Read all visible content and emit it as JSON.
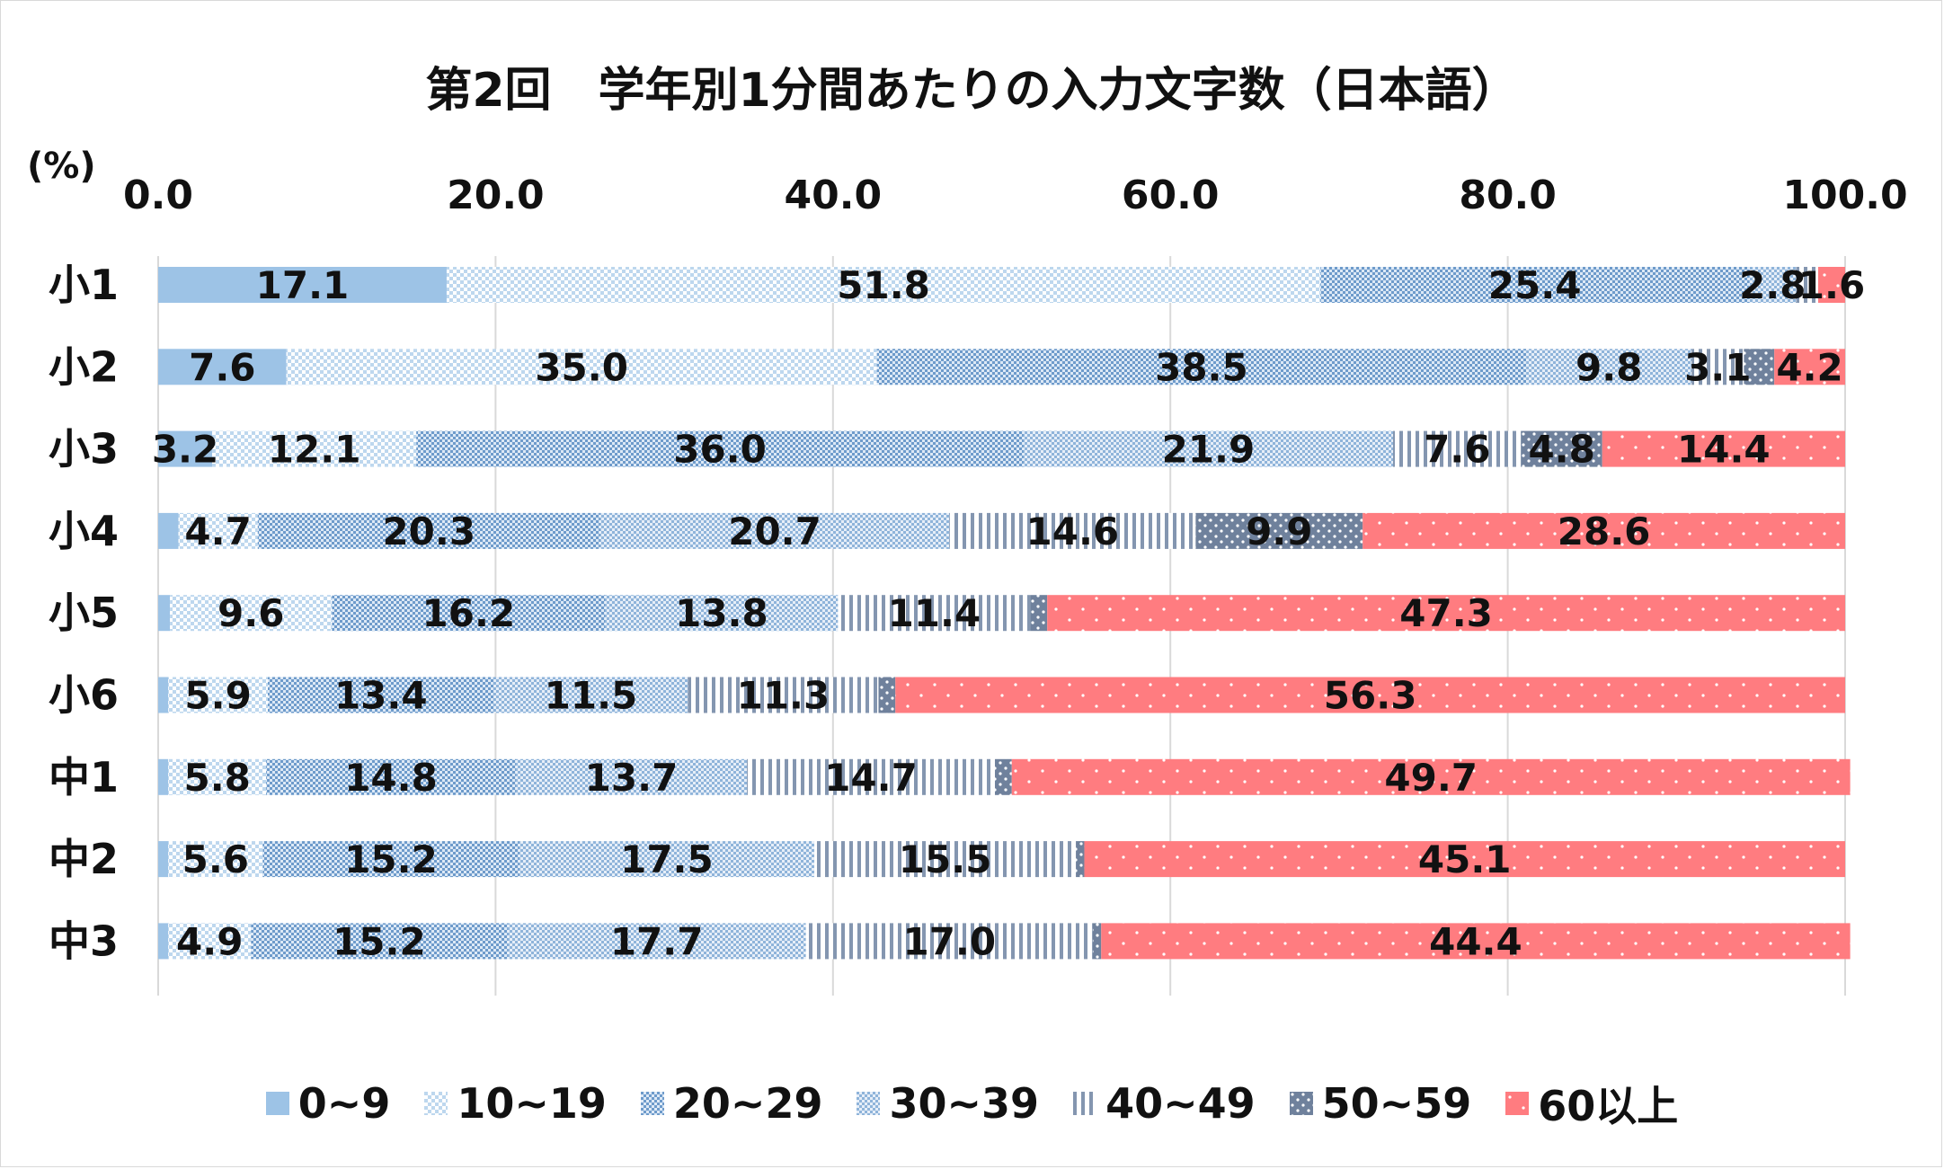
{
  "chart_data": {
    "type": "bar",
    "orientation": "horizontal",
    "stacked": true,
    "title": "第2回　学年別1分間あたりの入力文字数（日本語）",
    "unit_label": "(%)",
    "categories": [
      "小1",
      "小2",
      "小3",
      "小4",
      "小5",
      "小6",
      "中1",
      "中2",
      "中3"
    ],
    "x_ticks": [
      "0.0",
      "20.0",
      "40.0",
      "60.0",
      "80.0",
      "100.0"
    ],
    "xlim": [
      0,
      100
    ],
    "grid": true,
    "legend_position": "bottom",
    "series": [
      {
        "name": "0~9",
        "color": "#9dc3e6",
        "pattern": "solid",
        "values": [
          17.1,
          7.6,
          3.2,
          1.2,
          0.7,
          0.6,
          0.6,
          0.6,
          0.6
        ],
        "labels": [
          "17.1",
          "7.6",
          "3.2",
          "",
          "",
          "",
          "",
          "",
          ""
        ]
      },
      {
        "name": "10~19",
        "color": "#bdd7ee",
        "pattern": "light-checker",
        "values": [
          51.8,
          35.0,
          12.1,
          4.7,
          9.6,
          5.9,
          5.8,
          5.6,
          4.9
        ],
        "labels": [
          "51.8",
          "35.0",
          "12.1",
          "4.7",
          "9.6",
          "5.9",
          "5.8",
          "5.6",
          "4.9"
        ]
      },
      {
        "name": "20~29",
        "color": "#7aa4cf",
        "pattern": "checker",
        "values": [
          25.4,
          38.5,
          36.0,
          20.3,
          16.2,
          13.4,
          14.8,
          15.2,
          15.2
        ],
        "labels": [
          "25.4",
          "38.5",
          "36.0",
          "20.3",
          "16.2",
          "13.4",
          "14.8",
          "15.2",
          "15.2"
        ]
      },
      {
        "name": "30~39",
        "color": "#8fb4da",
        "pattern": "checker",
        "values": [
          2.8,
          9.8,
          21.9,
          20.7,
          13.8,
          11.5,
          13.7,
          17.5,
          17.7
        ],
        "labels": [
          "2.8",
          "9.8",
          "21.9",
          "20.7",
          "13.8",
          "11.5",
          "13.7",
          "17.5",
          "17.7"
        ]
      },
      {
        "name": "40~49",
        "color": "#8496b0",
        "pattern": "vertical-lines",
        "values": [
          1.3,
          3.1,
          7.6,
          14.6,
          11.4,
          11.3,
          14.7,
          15.5,
          17.0
        ],
        "labels": [
          "",
          "3.1",
          "7.6",
          "14.6",
          "11.4",
          "11.3",
          "14.7",
          "15.5",
          "17.0"
        ]
      },
      {
        "name": "50~59",
        "color": "#6f819c",
        "pattern": "dots",
        "values": [
          0.0,
          1.8,
          4.8,
          9.9,
          1.0,
          1.0,
          1.0,
          0.5,
          0.5
        ],
        "labels": [
          "",
          "",
          "4.8",
          "9.9",
          "",
          "",
          "",
          "",
          ""
        ]
      },
      {
        "name": "60以上",
        "color": "#ff7c80",
        "pattern": "dots-white",
        "values": [
          1.6,
          4.2,
          14.4,
          28.6,
          47.3,
          56.3,
          49.7,
          45.1,
          44.4
        ],
        "labels": [
          "1.6",
          "4.2",
          "14.4",
          "28.6",
          "47.3",
          "56.3",
          "49.7",
          "45.1",
          "44.4"
        ]
      }
    ]
  }
}
